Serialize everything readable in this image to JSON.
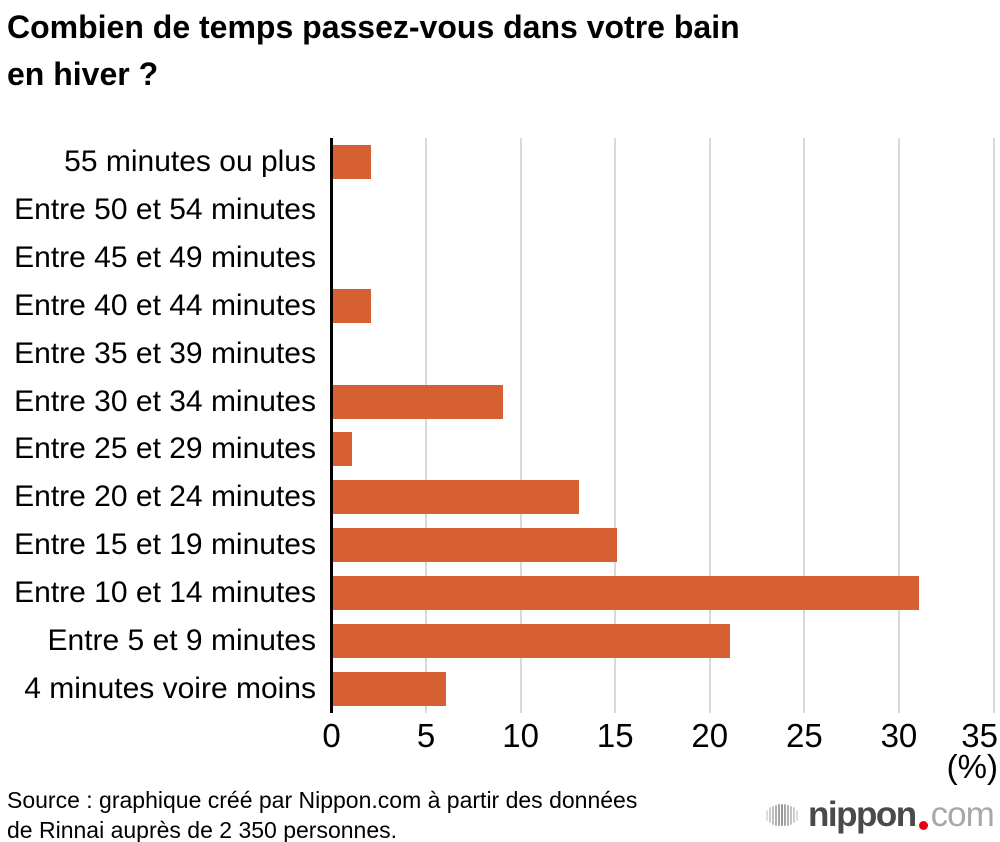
{
  "title_lines": [
    "Combien de temps passez-vous dans votre bain",
    "en hiver ?"
  ],
  "chart_data": {
    "type": "bar",
    "orientation": "horizontal",
    "title": "Combien de temps passez-vous dans votre bain en hiver ?",
    "categories": [
      "55 minutes ou plus",
      "Entre 50 et 54 minutes",
      "Entre 45 et 49 minutes",
      "Entre 40 et 44 minutes",
      "Entre 35 et 39 minutes",
      "Entre 30 et 34 minutes",
      "Entre 25 et 29 minutes",
      "Entre 20 et 24 minutes",
      "Entre 15 et 19 minutes",
      "Entre 10 et 14 minutes",
      "Entre 5 et 9 minutes",
      "4 minutes voire moins"
    ],
    "values": [
      2,
      0,
      0,
      2,
      0,
      9,
      1,
      13,
      15,
      31,
      21,
      6
    ],
    "x_ticks": [
      "0",
      "5",
      "10",
      "15",
      "20",
      "25",
      "30",
      "35"
    ],
    "xlim": [
      0,
      35
    ],
    "unit_label": "(%)",
    "grid": true,
    "legend_position": "none",
    "colors": {
      "bar": "#d66031",
      "axis": "#000000",
      "gridline": "#d9d9d9",
      "text": "#000000"
    }
  },
  "source_lines": [
    "Source : graphique créé par Nippon.com à partir des données",
    "de Rinnai auprès de 2 350 personnes."
  ],
  "logo": {
    "icon": "audio-waveform-icon",
    "name": "nippon",
    "dot": ".",
    "tld": "com",
    "colors": {
      "name": "#4a4a4a",
      "tld": "#a8a8a8",
      "dot": "#e60012"
    }
  }
}
